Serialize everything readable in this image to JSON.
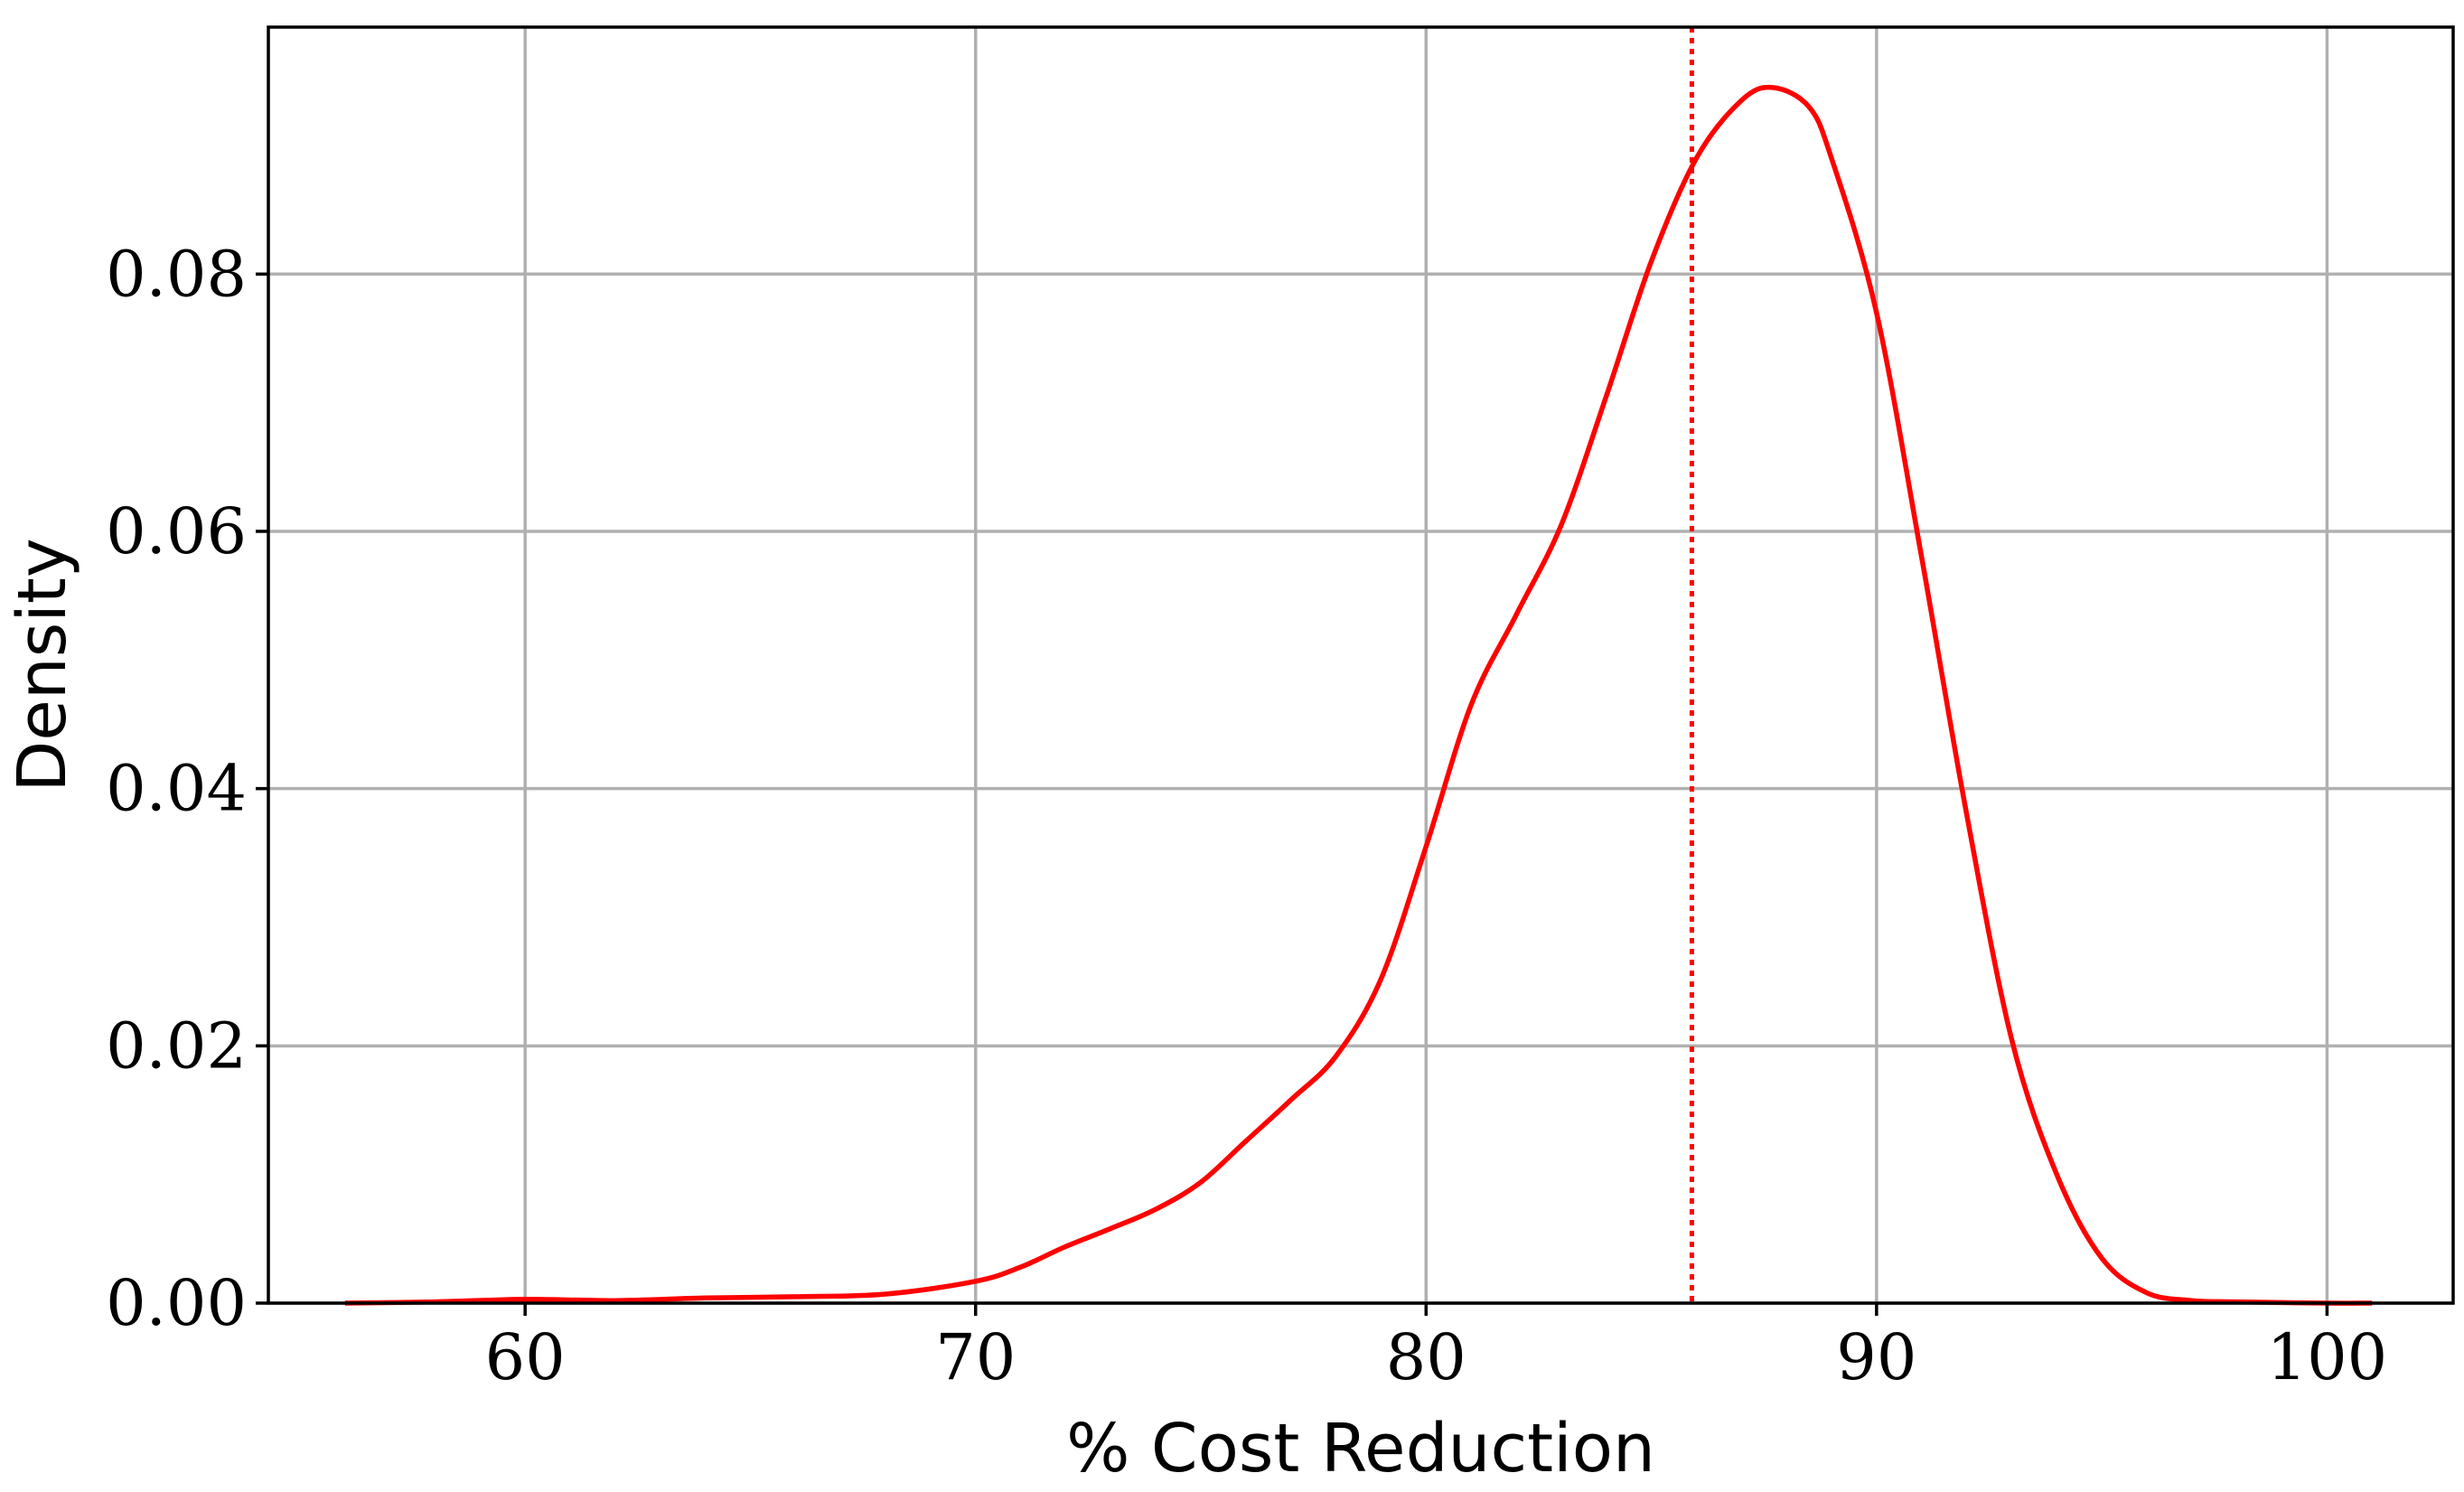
{
  "chart_data": {
    "type": "line",
    "title": "",
    "xlabel": "% Cost Reduction",
    "ylabel": "Density",
    "xlim": [
      54.3,
      102.8
    ],
    "ylim": [
      0,
      0.0992
    ],
    "grid": true,
    "legend": "none",
    "x_ticks": [
      60,
      70,
      80,
      90,
      100
    ],
    "x_tick_labels": [
      "60",
      "70",
      "80",
      "90",
      "100"
    ],
    "y_ticks": [
      0,
      0.02,
      0.04,
      0.06,
      0.08
    ],
    "y_tick_labels": [
      "0.00",
      "0.02",
      "0.04",
      "0.06",
      "0.08"
    ],
    "colors": {
      "curve": "#ff0000",
      "reference_line": "#ff0000",
      "grid": "#b0b0b0",
      "axes": "#000000"
    },
    "series": [
      {
        "style": "solid",
        "x": [
          56,
          58,
          60,
          62,
          64,
          66,
          68,
          70,
          71,
          72,
          73,
          74,
          75,
          76,
          77,
          78,
          79,
          80,
          81,
          82,
          83,
          84,
          85,
          86,
          87,
          87.7,
          88.5,
          89,
          90,
          91,
          92,
          93,
          94,
          95,
          96,
          97,
          98,
          100,
          101
        ],
        "y": [
          0.0,
          0.0001,
          0.0003,
          0.0002,
          0.0004,
          0.0005,
          0.0007,
          0.0017,
          0.0028,
          0.0044,
          0.0058,
          0.0073,
          0.0094,
          0.0126,
          0.0158,
          0.0192,
          0.0252,
          0.0355,
          0.0465,
          0.0535,
          0.0605,
          0.0705,
          0.081,
          0.089,
          0.0935,
          0.0945,
          0.093,
          0.089,
          0.077,
          0.058,
          0.038,
          0.0205,
          0.01,
          0.0035,
          0.0008,
          0.0002,
          0.0001,
          0.0,
          0.0
        ]
      }
    ],
    "reference_lines": [
      {
        "orientation": "vertical",
        "x": 85.9,
        "style": "dotted"
      }
    ]
  }
}
